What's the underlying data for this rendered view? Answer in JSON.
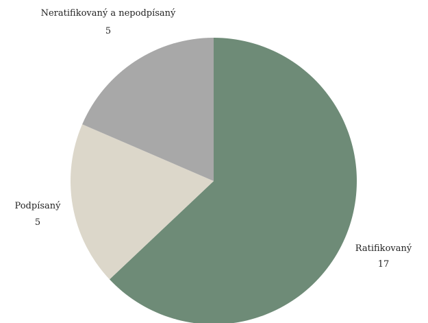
{
  "chart_data": {
    "type": "pie",
    "slices": [
      {
        "label": "Ratifikovaný",
        "value": 17,
        "value_label": "17",
        "color": "#6e8b77"
      },
      {
        "label": "Podpísaný",
        "value": 5,
        "value_label": "5",
        "color": "#dcd7ca"
      },
      {
        "label": "Neratifikovaný a nepodpísaný",
        "value": 5,
        "value_label": "5",
        "color": "#a8a8a8"
      }
    ]
  }
}
